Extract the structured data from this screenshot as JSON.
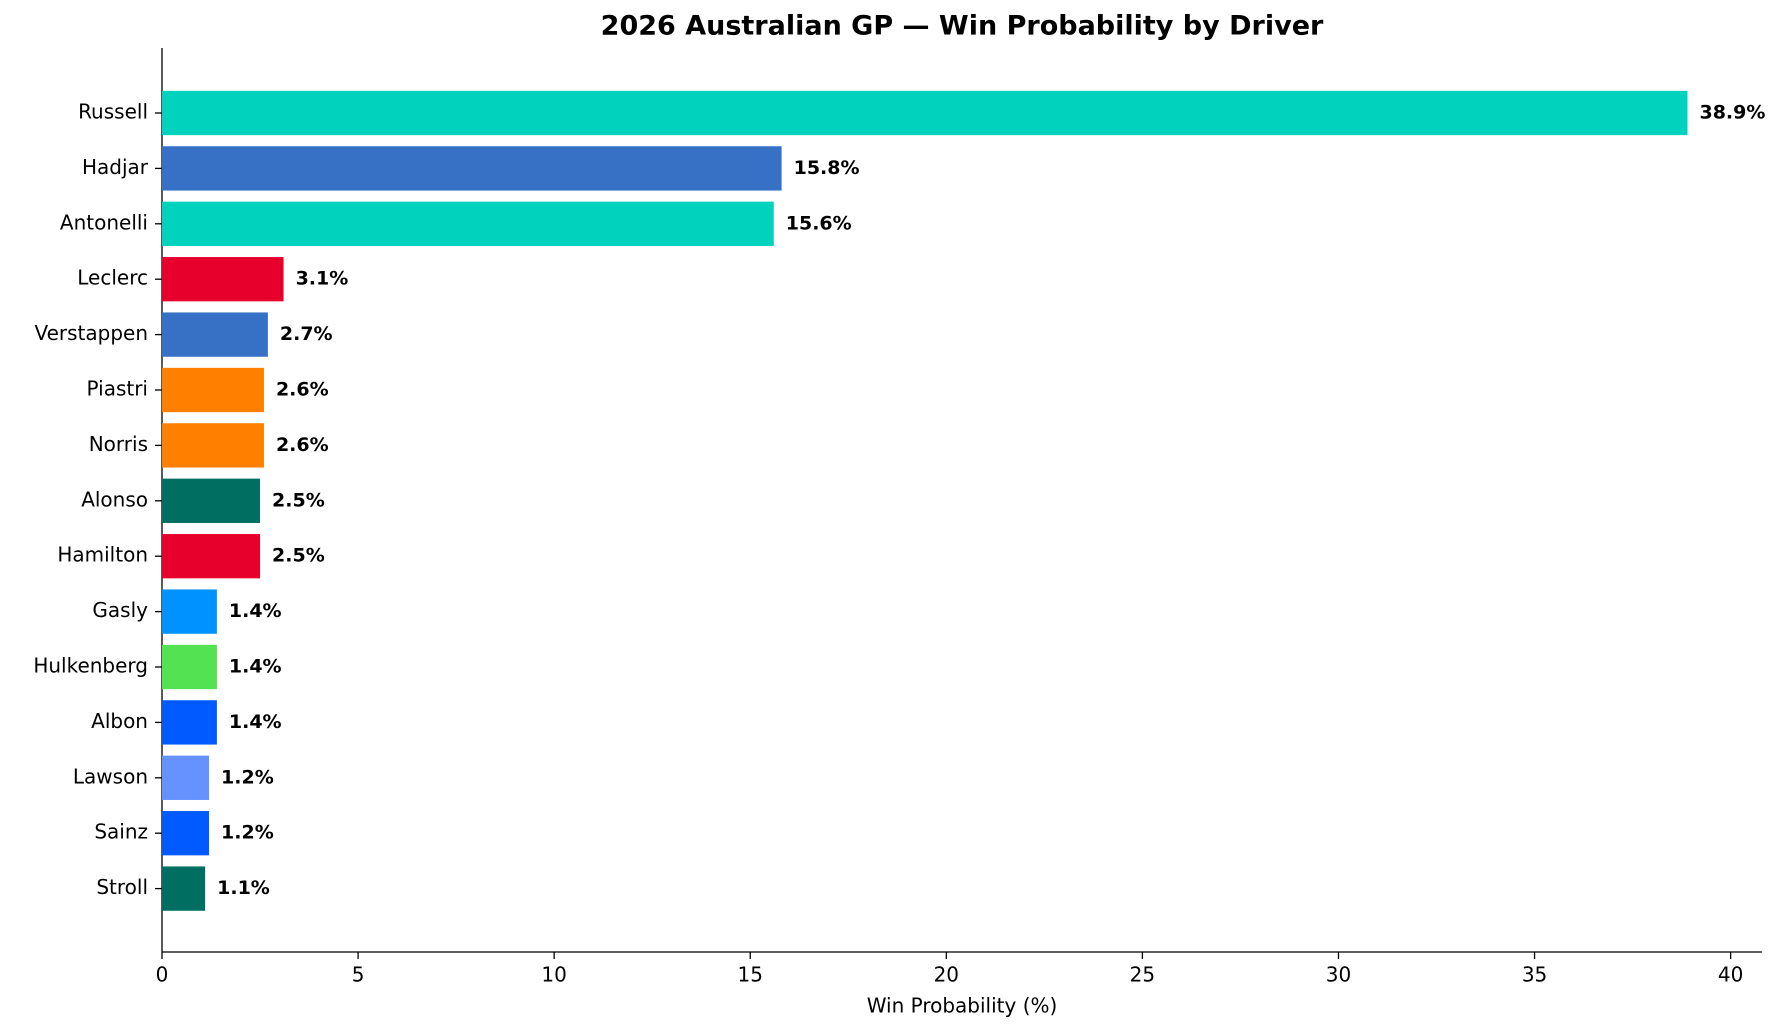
{
  "chart_data": {
    "type": "barh",
    "title": "2026 Australian GP — Win Probability by Driver",
    "x_label": "Win Probability (%)",
    "categories": [
      "Russell",
      "Hadjar",
      "Antonelli",
      "Leclerc",
      "Verstappen",
      "Piastri",
      "Norris",
      "Alonso",
      "Hamilton",
      "Gasly",
      "Hulkenberg",
      "Albon",
      "Lawson",
      "Sainz",
      "Stroll"
    ],
    "values": [
      38.9,
      15.8,
      15.6,
      3.1,
      2.7,
      2.6,
      2.6,
      2.5,
      2.5,
      1.4,
      1.4,
      1.4,
      1.2,
      1.2,
      1.1
    ],
    "value_labels": [
      "38.9%",
      "15.8%",
      "15.6%",
      "3.1%",
      "2.7%",
      "2.6%",
      "2.6%",
      "2.5%",
      "2.5%",
      "1.4%",
      "1.4%",
      "1.4%",
      "1.2%",
      "1.2%",
      "1.1%"
    ],
    "colors": [
      "#00d2be",
      "#3671c6",
      "#00d2be",
      "#e8002d",
      "#3671c6",
      "#ff8000",
      "#ff8000",
      "#006f62",
      "#e8002d",
      "#0093ff",
      "#52e252",
      "#005aff",
      "#6692ff",
      "#005aff",
      "#006f62"
    ],
    "xlim": [
      0,
      40.8
    ],
    "xticks": [
      0,
      5,
      10,
      15,
      20,
      25,
      30,
      35,
      40
    ]
  }
}
